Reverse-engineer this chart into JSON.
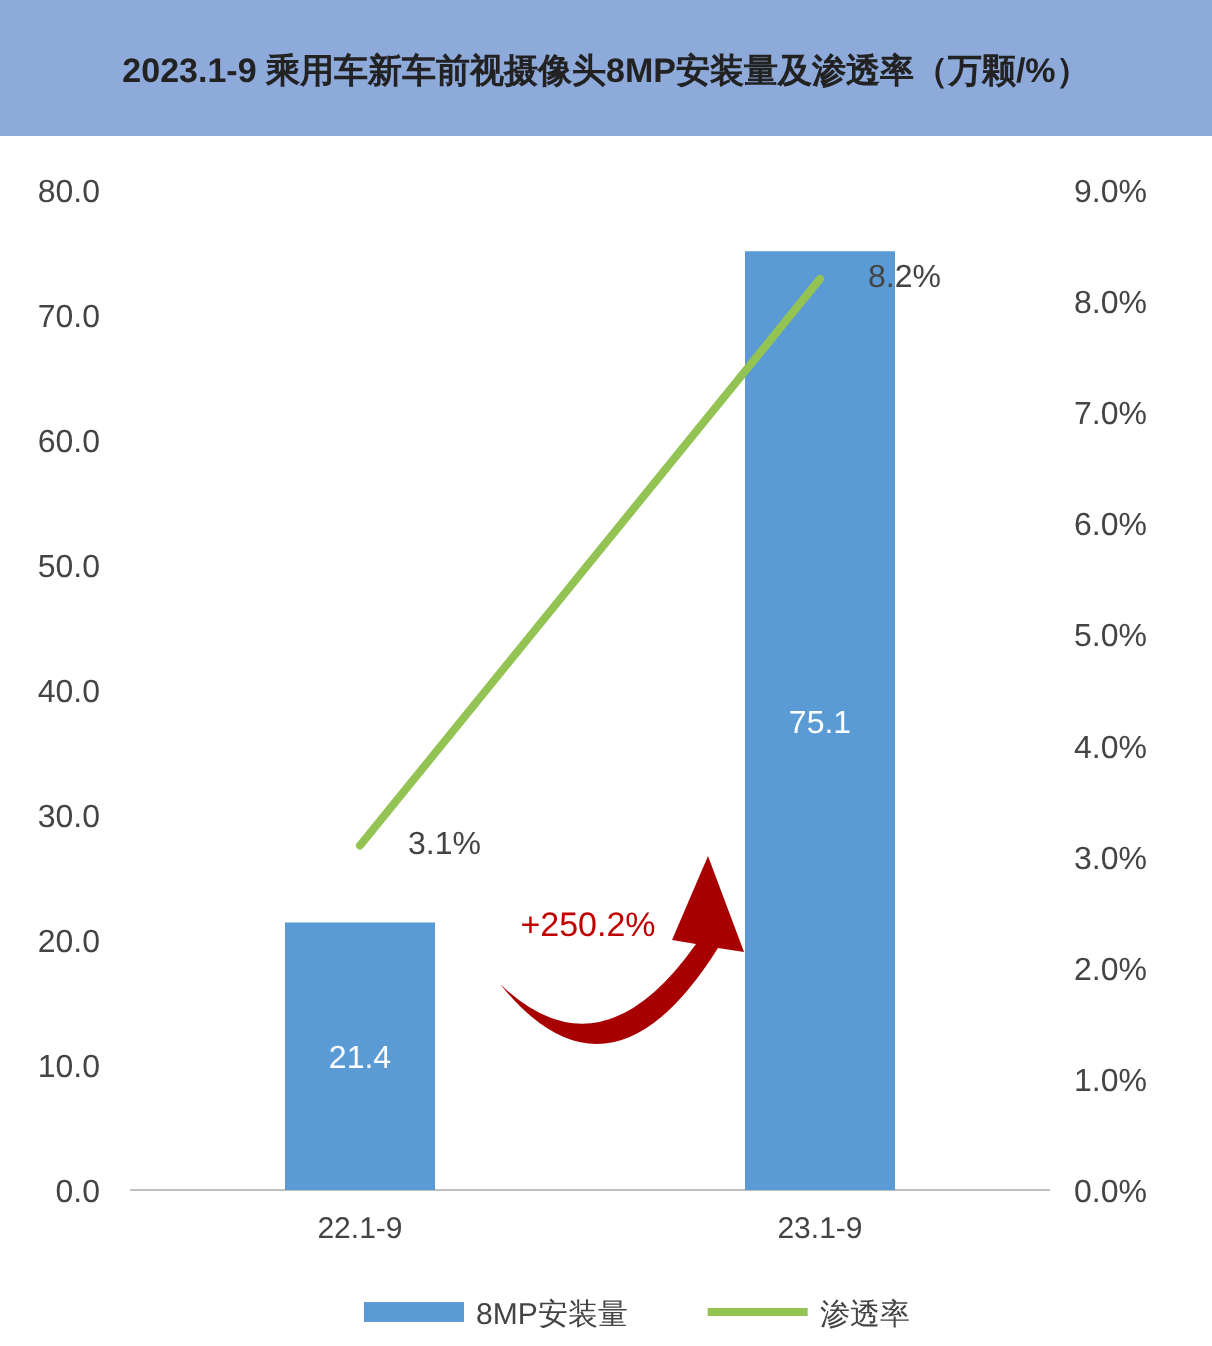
{
  "chart_data": {
    "type": "bar",
    "title": "2023.1-9 乘用车新车前视摄像头8MP安装量及渗透率（万颗/%）",
    "categories": [
      "22.1-9",
      "23.1-9"
    ],
    "series": [
      {
        "name": "8MP安装量",
        "color": "#5b9bd5",
        "values": [
          21.4,
          75.1
        ],
        "value_labels": [
          "21.4",
          "75.1"
        ]
      },
      {
        "name": "渗透率",
        "type": "line",
        "axis": "y2",
        "color": "#92c353",
        "values": [
          3.1,
          8.2
        ],
        "value_labels": [
          "3.1%",
          "8.2%"
        ]
      }
    ],
    "ylim": [
      0,
      80
    ],
    "yticks": [
      {
        "value": 0,
        "label": "0.0"
      },
      {
        "value": 10,
        "label": "10.0"
      },
      {
        "value": 20,
        "label": "20.0"
      },
      {
        "value": 30,
        "label": "30.0"
      },
      {
        "value": 40,
        "label": "40.0"
      },
      {
        "value": 50,
        "label": "50.0"
      },
      {
        "value": 60,
        "label": "60.0"
      },
      {
        "value": 70,
        "label": "70.0"
      },
      {
        "value": 80,
        "label": "80.0"
      }
    ],
    "y2lim": [
      0,
      9
    ],
    "y2ticks": [
      {
        "value": 0,
        "label": "0.0%"
      },
      {
        "value": 1,
        "label": "1.0%"
      },
      {
        "value": 2,
        "label": "2.0%"
      },
      {
        "value": 3,
        "label": "3.0%"
      },
      {
        "value": 4,
        "label": "4.0%"
      },
      {
        "value": 5,
        "label": "5.0%"
      },
      {
        "value": 6,
        "label": "6.0%"
      },
      {
        "value": 7,
        "label": "7.0%"
      },
      {
        "value": 8,
        "label": "8.0%"
      },
      {
        "value": 9,
        "label": "9.0%"
      }
    ],
    "annotations": [
      "+250.2%"
    ],
    "legend": "bottom"
  }
}
